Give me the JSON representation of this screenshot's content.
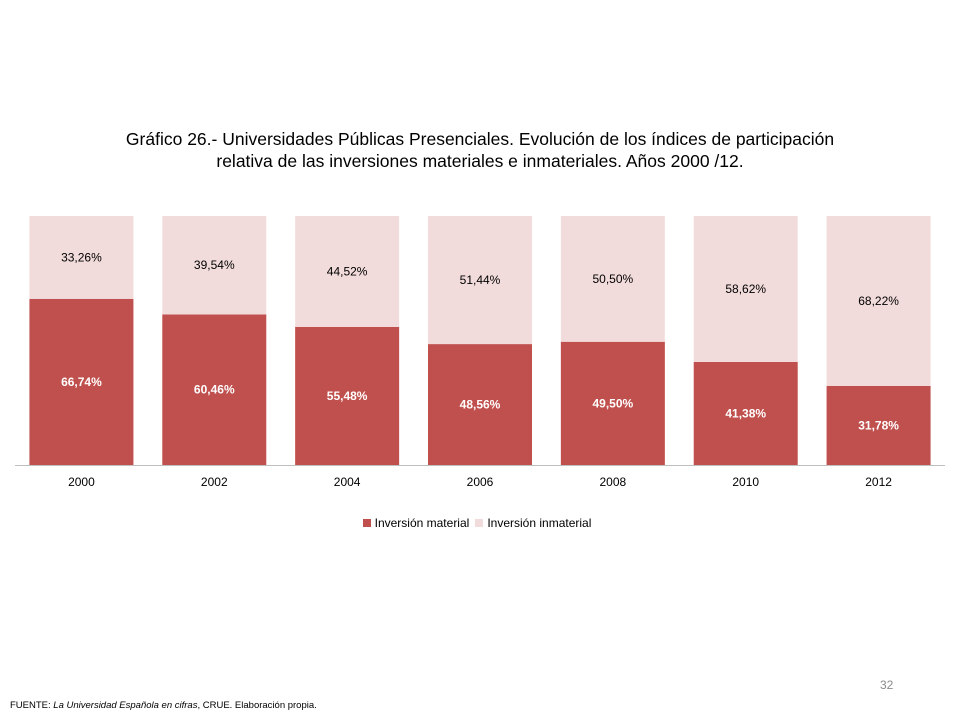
{
  "title": {
    "line1": "Gráfico 26.- Universidades Públicas Presenciales. Evolución de los índices de participación",
    "line2": "relativa de las inversiones materiales e inmateriales. Años 2000 /12."
  },
  "chart_data": {
    "type": "bar",
    "stacked": true,
    "percent_stacked": true,
    "categories": [
      "2000",
      "2002",
      "2004",
      "2006",
      "2008",
      "2010",
      "2012"
    ],
    "series": [
      {
        "name": "Inversión material",
        "values": [
          66.74,
          60.46,
          55.48,
          48.56,
          49.5,
          41.38,
          31.78
        ],
        "labels": [
          "66,74%",
          "60,46%",
          "55,48%",
          "48,56%",
          "49,50%",
          "41,38%",
          "31,78%"
        ],
        "color": "#c0504d"
      },
      {
        "name": "Inversión inmaterial",
        "values": [
          33.26,
          39.54,
          44.52,
          51.44,
          50.5,
          58.62,
          68.22
        ],
        "labels": [
          "33,26%",
          "39,54%",
          "44,52%",
          "51,44%",
          "50,50%",
          "58,62%",
          "68,22%"
        ],
        "color": "#f2dcdb"
      }
    ],
    "ylim": [
      0,
      100
    ],
    "legend_position": "bottom",
    "grid": false
  },
  "legend": {
    "material": "Inversión material",
    "inmaterial": "Inversión inmaterial"
  },
  "colors": {
    "material": "#c0504d",
    "inmaterial": "#f2dcdb",
    "axis": "#bfbfbf"
  },
  "page_number": "32",
  "footer": {
    "prefix": "FUENTE: ",
    "source": "La Universidad Española en cifras",
    "suffix": ", CRUE. Elaboración propia."
  }
}
